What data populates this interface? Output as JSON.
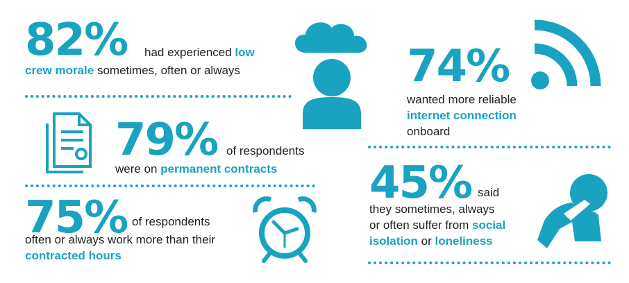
{
  "colors": {
    "accent": "#1aa3c1",
    "text": "#222222"
  },
  "stats": [
    {
      "id": "morale",
      "value": "82%",
      "icon": "sad-person-cloud-icon",
      "line1_pre": "had experienced ",
      "line1_hl": "low",
      "line2_hl": "crew morale",
      "line2_post": " sometimes, often or always"
    },
    {
      "id": "internet",
      "value": "74%",
      "icon": "wifi-signal-icon",
      "line1": "wanted more reliable",
      "line2_hl": "internet connection",
      "line3": "onboard"
    },
    {
      "id": "contracts",
      "value": "79%",
      "icon": "documents-contract-icon",
      "line1": "of respondents",
      "line2_pre": "were on ",
      "line2_hl": "permanent contracts"
    },
    {
      "id": "hours",
      "value": "75%",
      "icon": "alarm-clock-icon",
      "line1": "of respondents",
      "line2": "often or always work more than their",
      "line3_hl": "contracted hours"
    },
    {
      "id": "isolation",
      "value": "45%",
      "icon": "lonely-person-icon",
      "line1": "said",
      "line2": "they sometimes, always",
      "line3_pre": "or often suffer from ",
      "line3_hl": "social",
      "line4_hl": "isolation",
      "line4_mid": " or ",
      "line4_hl2": "loneliness"
    }
  ]
}
